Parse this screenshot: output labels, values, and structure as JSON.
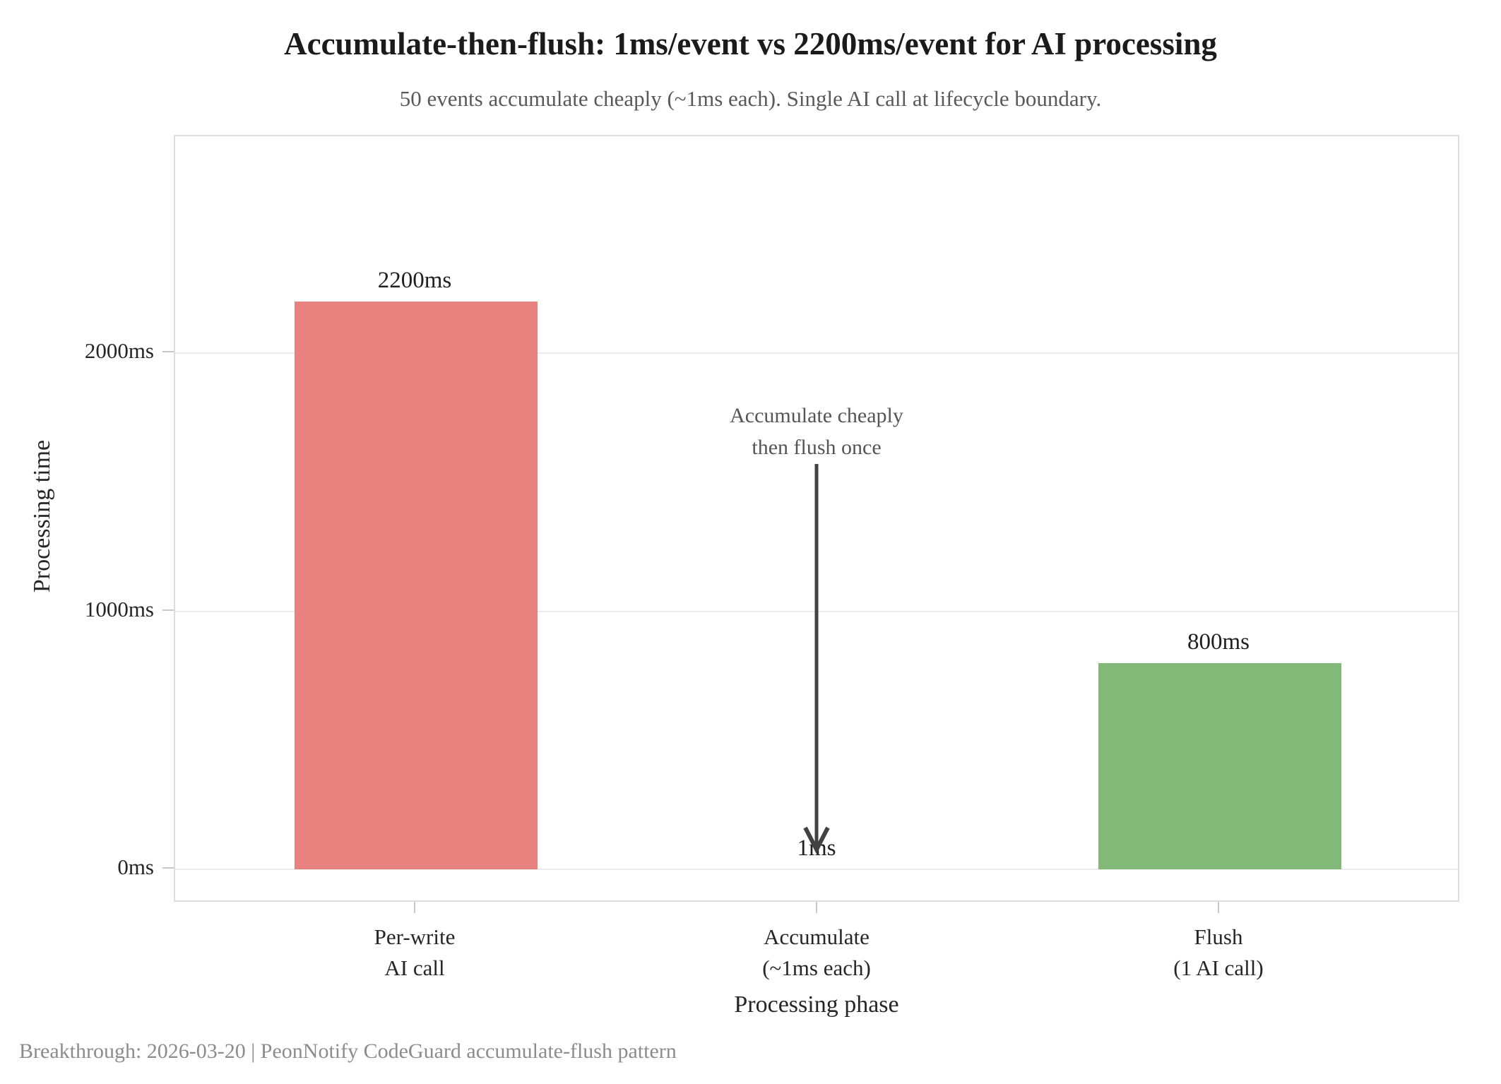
{
  "header": {
    "title": "Accumulate-then-flush: 1ms/event vs 2200ms/event for AI processing",
    "subtitle": "50 events accumulate cheaply (~1ms each). Single AI call at lifecycle boundary."
  },
  "footer": {
    "text": "Breakthrough: 2026-03-20  |  PeonNotify CodeGuard accumulate-flush pattern"
  },
  "chart_data": {
    "type": "bar",
    "title": "Accumulate-then-flush: 1ms/event vs 2200ms/event for AI processing",
    "subtitle": "50 events accumulate cheaply (~1ms each). Single AI call at lifecycle boundary.",
    "xlabel": "Processing phase",
    "ylabel": "Processing time",
    "categories": [
      "Per-write\nAI call",
      "Accumulate\n(~1ms each)",
      "Flush\n(1 AI call)"
    ],
    "values": [
      2200,
      1,
      800
    ],
    "value_labels": [
      "2200ms",
      "1ms",
      "800ms"
    ],
    "bar_colors": [
      "#e8827e",
      null,
      "#82b978"
    ],
    "yticks": [
      {
        "value": 0,
        "label": "0ms"
      },
      {
        "value": 1000,
        "label": "1000ms"
      },
      {
        "value": 2000,
        "label": "2000ms"
      }
    ],
    "ylim": [
      -130,
      2840
    ],
    "grid": "horizontal",
    "legend": "none",
    "annotation": {
      "text": "Accumulate cheaply\nthen flush once",
      "points_to_category": "Accumulate",
      "arrow_direction": "down",
      "arrow_color": "#424242"
    }
  }
}
